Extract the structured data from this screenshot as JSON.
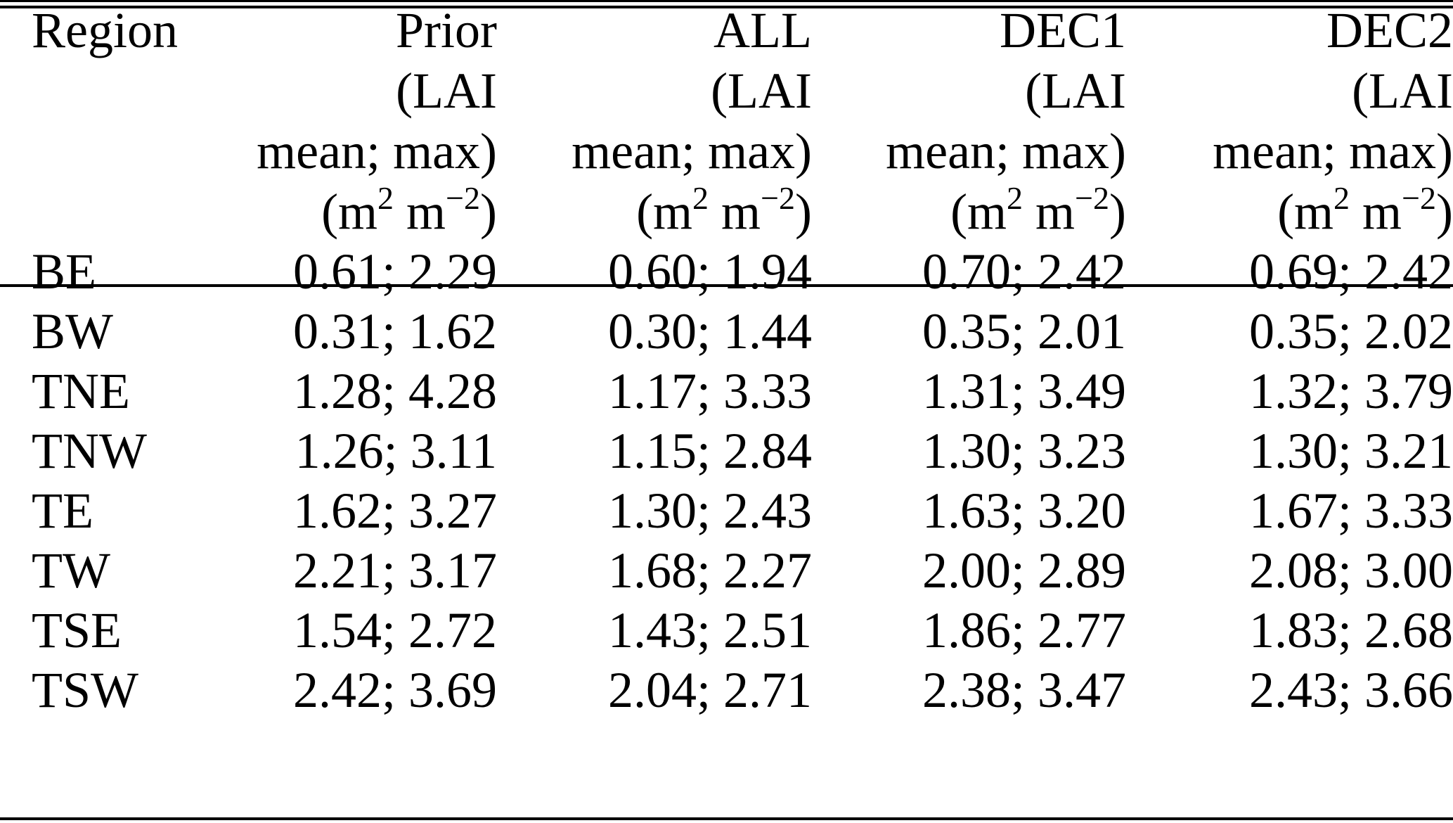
{
  "table": {
    "region_header": "Region",
    "columns": [
      {
        "name": "Prior",
        "sub1": "(LAI",
        "sub2": "mean; max)",
        "unit": {
          "open": "(m",
          "exp1": "2",
          "mid": " m",
          "exp2": "−2",
          "close": ")"
        }
      },
      {
        "name": "ALL",
        "sub1": "(LAI",
        "sub2": "mean; max)",
        "unit": {
          "open": "(m",
          "exp1": "2",
          "mid": " m",
          "exp2": "−2",
          "close": ")"
        }
      },
      {
        "name": "DEC1",
        "sub1": "(LAI",
        "sub2": "mean; max)",
        "unit": {
          "open": "(m",
          "exp1": "2",
          "mid": " m",
          "exp2": "−2",
          "close": ")"
        }
      },
      {
        "name": "DEC2",
        "sub1": "(LAI",
        "sub2": "mean; max)",
        "unit": {
          "open": "(m",
          "exp1": "2",
          "mid": " m",
          "exp2": "−2",
          "close": ")"
        }
      }
    ],
    "rows": [
      {
        "region": "BE",
        "values": [
          "0.61; 2.29",
          "0.60; 1.94",
          "0.70; 2.42",
          "0.69; 2.42"
        ]
      },
      {
        "region": "BW",
        "values": [
          "0.31; 1.62",
          "0.30; 1.44",
          "0.35; 2.01",
          "0.35; 2.02"
        ]
      },
      {
        "region": "TNE",
        "values": [
          "1.28; 4.28",
          "1.17; 3.33",
          "1.31; 3.49",
          "1.32; 3.79"
        ]
      },
      {
        "region": "TNW",
        "values": [
          "1.26; 3.11",
          "1.15; 2.84",
          "1.30; 3.23",
          "1.30; 3.21"
        ]
      },
      {
        "region": "TE",
        "values": [
          "1.62; 3.27",
          "1.30; 2.43",
          "1.63; 3.20",
          "1.67; 3.33"
        ]
      },
      {
        "region": "TW",
        "values": [
          "2.21; 3.17",
          "1.68; 2.27",
          "2.00; 2.89",
          "2.08; 3.00"
        ]
      },
      {
        "region": "TSE",
        "values": [
          "1.54; 2.72",
          "1.43; 2.51",
          "1.86; 2.77",
          "1.83; 2.68"
        ]
      },
      {
        "region": "TSW",
        "values": [
          "2.42; 3.69",
          "2.04; 2.71",
          "2.38; 3.47",
          "2.43; 3.66"
        ]
      }
    ]
  }
}
